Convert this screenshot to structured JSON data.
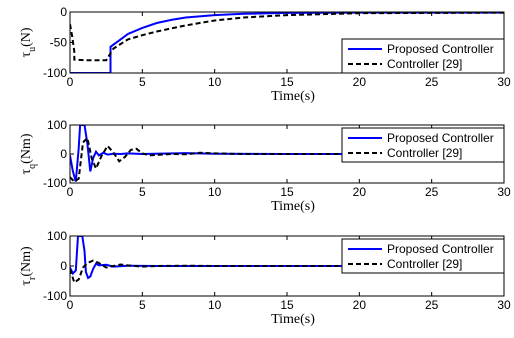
{
  "chart_data": [
    {
      "type": "line",
      "ylabel": {
        "symbol": "τ",
        "sub": "u",
        "unit": "(N)"
      },
      "xlabel": "Time(s)",
      "xlim": [
        0,
        30
      ],
      "ylim": [
        -100,
        0
      ],
      "xticks": [
        "0",
        "5",
        "10",
        "15",
        "20",
        "25",
        "30"
      ],
      "yticks": [
        "-100",
        "-50",
        "0"
      ],
      "legend_position": "bottom-right",
      "grid": false,
      "series": [
        {
          "name": "Proposed Controller",
          "color": "#0000ff",
          "style": "solid",
          "x": [
            0,
            2.8,
            2.8,
            3.5,
            4,
            5,
            6,
            7,
            8,
            10,
            12,
            15,
            20,
            30
          ],
          "y": [
            -100,
            -100,
            -57,
            -45,
            -36,
            -26,
            -18,
            -13,
            -9,
            -5,
            -3,
            -1.5,
            -1,
            -1
          ]
        },
        {
          "name": "Controller [29]",
          "color": "#000000",
          "style": "dashed",
          "x": [
            0,
            0.15,
            0.3,
            0.3,
            1,
            2,
            2.5,
            3,
            4,
            5,
            6,
            8,
            10,
            12,
            15,
            20,
            30
          ],
          "y": [
            -20,
            -40,
            -65,
            -78,
            -79,
            -79,
            -79,
            -60,
            -45,
            -38,
            -32,
            -22,
            -14,
            -9,
            -5,
            -2,
            -1
          ]
        }
      ]
    },
    {
      "type": "line",
      "ylabel": {
        "symbol": "τ",
        "sub": "q",
        "unit": "(Nm)"
      },
      "xlabel": "Time(s)",
      "xlim": [
        0,
        30
      ],
      "ylim": [
        -100,
        100
      ],
      "xticks": [
        "0",
        "5",
        "10",
        "15",
        "20",
        "25",
        "30"
      ],
      "yticks": [
        "-100",
        "0",
        "100"
      ],
      "legend_position": "top-right",
      "grid": false,
      "series": [
        {
          "name": "Proposed Controller",
          "color": "#0000ff",
          "style": "solid",
          "x": [
            0,
            0.2,
            0.4,
            0.6,
            0.7,
            0.8,
            0.9,
            1.0,
            1.2,
            1.4,
            1.6,
            1.8,
            2.0,
            2.3,
            2.6,
            3.0,
            3.5,
            4,
            5,
            8,
            10,
            15,
            30
          ],
          "y": [
            -5,
            -60,
            -95,
            20,
            100,
            100,
            100,
            100,
            35,
            -60,
            -15,
            8,
            -5,
            4,
            -2,
            1,
            0,
            2,
            0,
            3,
            1,
            0,
            0
          ]
        },
        {
          "name": "Controller [29]",
          "color": "#000000",
          "style": "dashed",
          "x": [
            0,
            0.3,
            0.6,
            0.9,
            1.2,
            1.5,
            1.8,
            2.2,
            2.6,
            3.0,
            3.4,
            3.8,
            4.2,
            4.6,
            5.0,
            5.5,
            6.0,
            7,
            8,
            9,
            10,
            12,
            15,
            30
          ],
          "y": [
            -80,
            -95,
            -85,
            40,
            55,
            -15,
            -50,
            -5,
            28,
            5,
            -25,
            -10,
            14,
            18,
            2,
            -5,
            -3,
            0,
            -1,
            4,
            2,
            0,
            0,
            0
          ]
        }
      ]
    },
    {
      "type": "line",
      "ylabel": {
        "symbol": "τ",
        "sub": "r",
        "unit": "(Nm)"
      },
      "xlabel": "Time(s)",
      "xlim": [
        0,
        30
      ],
      "ylim": [
        -100,
        100
      ],
      "xticks": [
        "0",
        "5",
        "10",
        "15",
        "20",
        "25",
        "30"
      ],
      "yticks": [
        "-100",
        "0",
        "100"
      ],
      "legend_position": "top-right",
      "grid": false,
      "series": [
        {
          "name": "Proposed Controller",
          "color": "#0000ff",
          "style": "solid",
          "x": [
            0,
            0.2,
            0.4,
            0.55,
            0.7,
            0.85,
            1.0,
            1.1,
            1.25,
            1.4,
            1.6,
            1.8,
            2.0,
            2.5,
            3.0,
            4,
            6,
            10,
            30
          ],
          "y": [
            -5,
            -25,
            -15,
            100,
            100,
            100,
            50,
            -20,
            -40,
            -35,
            -10,
            8,
            2,
            4,
            -2,
            1,
            0,
            0,
            0
          ]
        },
        {
          "name": "Controller [29]",
          "color": "#000000",
          "style": "dashed",
          "x": [
            0,
            0.3,
            0.6,
            0.9,
            1.2,
            1.6,
            2.0,
            2.5,
            3.0,
            3.5,
            4.0,
            5,
            6,
            8,
            10,
            15,
            30
          ],
          "y": [
            -10,
            -55,
            -45,
            -5,
            10,
            18,
            10,
            -5,
            0,
            5,
            2,
            -2,
            0,
            1,
            0,
            0,
            0
          ]
        }
      ]
    }
  ]
}
